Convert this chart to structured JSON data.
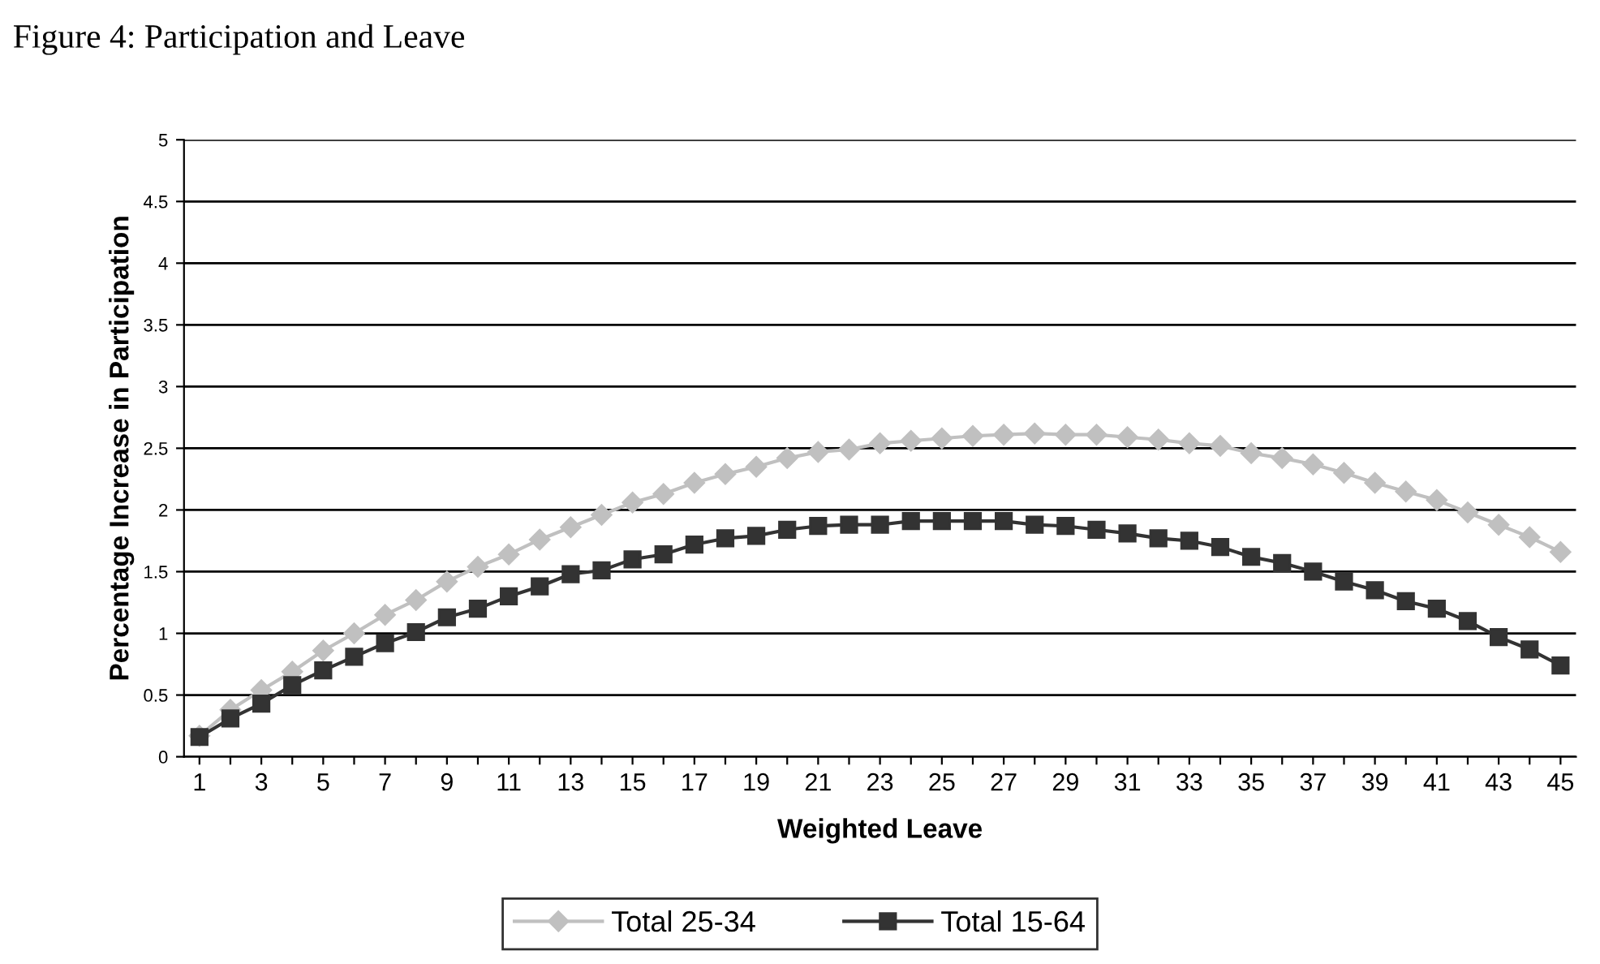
{
  "chart_data": {
    "type": "line",
    "title": "Figure 4: Participation and Leave",
    "xlabel": "Weighted Leave",
    "ylabel": "Percentage Increase in Participation",
    "categories": [
      "1",
      null,
      "3",
      null,
      "5",
      null,
      "7",
      null,
      "9",
      null,
      "11",
      null,
      "13",
      null,
      "15",
      null,
      "17",
      null,
      "19",
      null,
      "21",
      null,
      "23",
      null,
      "25",
      null,
      "27",
      null,
      "29",
      null,
      "31",
      null,
      "33",
      null,
      "35",
      null,
      "37",
      null,
      "39",
      null,
      "41",
      null,
      "43",
      null,
      "45"
    ],
    "series": [
      {
        "name": "Total 25-34",
        "color": "#c0c0c0",
        "marker": "diamond",
        "values": [
          0.17,
          0.38,
          0.54,
          0.69,
          0.86,
          1.0,
          1.15,
          1.27,
          1.42,
          1.54,
          1.64,
          1.76,
          1.86,
          1.96,
          2.06,
          2.13,
          2.22,
          2.29,
          2.35,
          2.42,
          2.47,
          2.49,
          2.54,
          2.56,
          2.58,
          2.6,
          2.61,
          2.62,
          2.61,
          2.61,
          2.59,
          2.57,
          2.54,
          2.52,
          2.46,
          2.42,
          2.37,
          2.3,
          2.22,
          2.15,
          2.08,
          1.98,
          1.88,
          1.78,
          1.66
        ]
      },
      {
        "name": "Total 15-64",
        "color": "#333333",
        "marker": "square",
        "values": [
          0.16,
          0.31,
          0.43,
          0.58,
          0.7,
          0.81,
          0.92,
          1.01,
          1.13,
          1.2,
          1.3,
          1.38,
          1.48,
          1.51,
          1.6,
          1.64,
          1.72,
          1.77,
          1.79,
          1.84,
          1.87,
          1.88,
          1.88,
          1.91,
          1.91,
          1.91,
          1.91,
          1.88,
          1.87,
          1.84,
          1.81,
          1.77,
          1.75,
          1.7,
          1.62,
          1.57,
          1.5,
          1.42,
          1.35,
          1.26,
          1.2,
          1.1,
          0.97,
          0.87,
          0.74
        ]
      }
    ],
    "ylim": [
      0,
      5
    ],
    "yticks": [
      0,
      0.5,
      1,
      1.5,
      2,
      2.5,
      3,
      3.5,
      4,
      4.5,
      5
    ],
    "grid": "y",
    "legend": "bottom",
    "line_style": "solid"
  }
}
